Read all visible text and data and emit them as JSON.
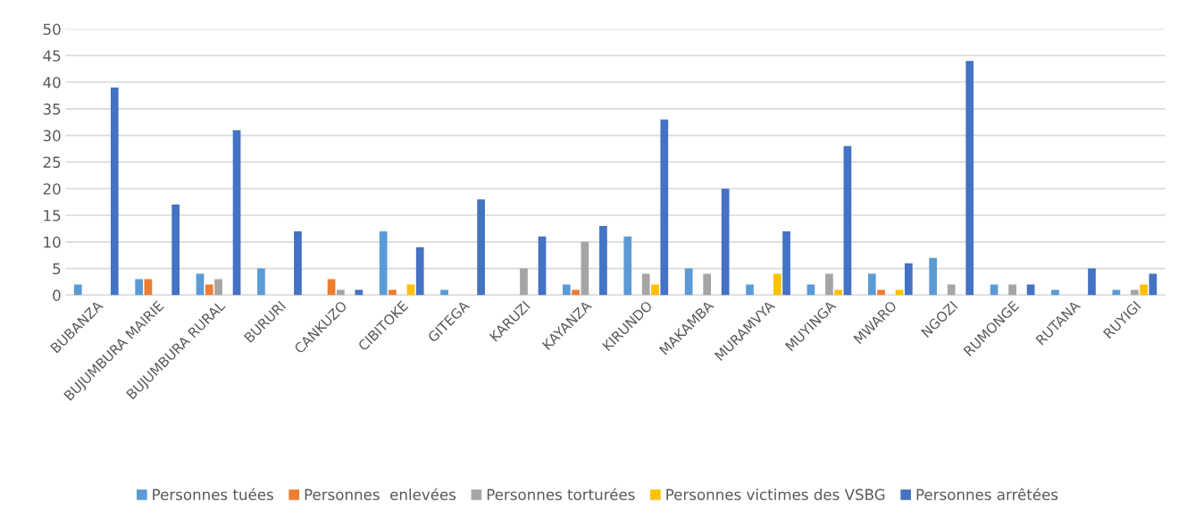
{
  "chart_data": {
    "type": "bar",
    "categories": [
      "BUBANZA",
      "BUJUMBURA MAIRIE",
      "BUJUMBURA RURAL",
      "BURURI",
      "CANKUZO",
      "CIBITOKE",
      "GITEGA",
      "KARUZI",
      "KAYANZA",
      "KIRUNDO",
      "MAKAMBA",
      "MURAMVYA",
      "MUYINGA",
      "MWARO",
      "NGOZI",
      "RUMONGE",
      "RUTANA",
      "RUYIGI"
    ],
    "series": [
      {
        "name": "Personnes tuées",
        "color": "#5b9bd5",
        "values": [
          2,
          3,
          4,
          5,
          0,
          12,
          1,
          0,
          2,
          11,
          5,
          2,
          2,
          4,
          7,
          2,
          1,
          1
        ]
      },
      {
        "name": "Personnes  enlevées",
        "color": "#ed7d31",
        "values": [
          0,
          3,
          2,
          0,
          3,
          1,
          0,
          0,
          1,
          0,
          0,
          0,
          0,
          1,
          0,
          0,
          0,
          0
        ]
      },
      {
        "name": "Personnes torturées",
        "color": "#a5a5a5",
        "values": [
          0,
          0,
          3,
          0,
          1,
          0,
          0,
          5,
          10,
          4,
          4,
          0,
          4,
          0,
          2,
          2,
          0,
          1
        ]
      },
      {
        "name": "Personnes victimes des VSBG",
        "color": "#ffc000",
        "values": [
          0,
          0,
          0,
          0,
          0,
          2,
          0,
          0,
          0,
          2,
          0,
          4,
          1,
          1,
          0,
          0,
          0,
          2
        ]
      },
      {
        "name": "Personnes arrêtées",
        "color": "#4472c4",
        "values": [
          39,
          17,
          31,
          12,
          1,
          9,
          18,
          11,
          13,
          33,
          20,
          12,
          28,
          6,
          44,
          2,
          5,
          4
        ]
      }
    ],
    "ylim": [
      0,
      50
    ],
    "yticks": [
      0,
      5,
      10,
      15,
      20,
      25,
      30,
      35,
      40,
      45,
      50
    ],
    "grid": "y",
    "legend": "bottom"
  }
}
